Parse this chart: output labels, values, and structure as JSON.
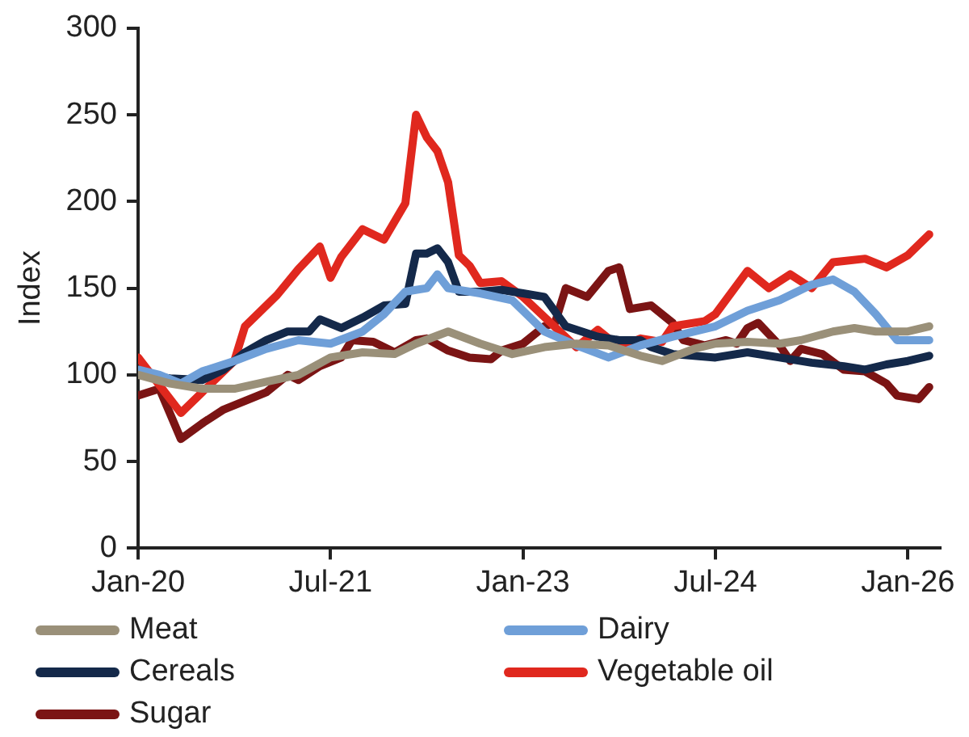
{
  "chart_data": {
    "type": "line",
    "ylabel": "Index",
    "legend": "bottom",
    "line_style": "solid",
    "marker": "none",
    "xlim": [
      "2020-01",
      "2026-04"
    ],
    "xticks": [
      {
        "value": "2020-01",
        "label": "Jan-20"
      },
      {
        "value": "2021-07",
        "label": "Jul-21"
      },
      {
        "value": "2023-01",
        "label": "Jan-23"
      },
      {
        "value": "2024-07",
        "label": "Jul-24"
      },
      {
        "value": "2026-01",
        "label": "Jan-26"
      }
    ],
    "ylim": [
      0,
      300
    ],
    "yticks": [
      0,
      50,
      100,
      150,
      200,
      250,
      300
    ],
    "series": [
      {
        "name": "Meat",
        "color": "#9a9079",
        "x": [
          "2020-01",
          "2020-04",
          "2020-07",
          "2020-10",
          "2021-01",
          "2021-04",
          "2021-07",
          "2021-10",
          "2022-01",
          "2022-03",
          "2022-06",
          "2022-09",
          "2022-12",
          "2023-03",
          "2023-06",
          "2023-09",
          "2023-12",
          "2024-02",
          "2024-05",
          "2024-07",
          "2024-10",
          "2025-01",
          "2025-03",
          "2025-06",
          "2025-08",
          "2025-10",
          "2026-01",
          "2026-03"
        ],
        "values": [
          100,
          95,
          92,
          92,
          96,
          100,
          110,
          113,
          112,
          118,
          125,
          118,
          112,
          116,
          118,
          117,
          111,
          108,
          115,
          118,
          119,
          118,
          120,
          125,
          127,
          125,
          125,
          128
        ]
      },
      {
        "name": "Dairy",
        "color": "#6f9fd8",
        "x": [
          "2020-01",
          "2020-03",
          "2020-05",
          "2020-07",
          "2020-10",
          "2021-01",
          "2021-04",
          "2021-07",
          "2021-10",
          "2021-12",
          "2022-02",
          "2022-04",
          "2022-05",
          "2022-06",
          "2022-09",
          "2022-12",
          "2023-03",
          "2023-06",
          "2023-09",
          "2023-12",
          "2024-03",
          "2024-07",
          "2024-10",
          "2025-01",
          "2025-04",
          "2025-06",
          "2025-08",
          "2025-10",
          "2025-12",
          "2026-03"
        ],
        "values": [
          103,
          100,
          95,
          102,
          108,
          115,
          120,
          118,
          125,
          135,
          148,
          150,
          158,
          150,
          147,
          143,
          125,
          117,
          110,
          117,
          122,
          128,
          137,
          143,
          152,
          155,
          148,
          135,
          120,
          120
        ]
      },
      {
        "name": "Cereals",
        "color": "#14294a",
        "x": [
          "2020-01",
          "2020-04",
          "2020-07",
          "2020-09",
          "2020-11",
          "2021-01",
          "2021-03",
          "2021-05",
          "2021-06",
          "2021-08",
          "2021-10",
          "2021-12",
          "2022-02",
          "2022-03",
          "2022-04",
          "2022-05",
          "2022-06",
          "2022-07",
          "2022-09",
          "2022-11",
          "2023-01",
          "2023-03",
          "2023-05",
          "2023-08",
          "2023-10",
          "2023-12",
          "2024-01",
          "2024-03",
          "2024-07",
          "2024-10",
          "2025-01",
          "2025-04",
          "2025-07",
          "2025-09",
          "2025-11",
          "2026-01",
          "2026-03"
        ],
        "values": [
          100,
          98,
          97,
          103,
          113,
          120,
          125,
          125,
          132,
          127,
          133,
          140,
          141,
          170,
          170,
          173,
          165,
          148,
          148,
          149,
          147,
          145,
          128,
          122,
          120,
          120,
          116,
          112,
          110,
          113,
          110,
          107,
          105,
          103,
          106,
          108,
          111
        ]
      },
      {
        "name": "Vegetable oil",
        "color": "#e0281e",
        "x": [
          "2020-01",
          "2020-05",
          "2020-10",
          "2020-11",
          "2021-02",
          "2021-04",
          "2021-06",
          "2021-07",
          "2021-08",
          "2021-10",
          "2021-12",
          "2022-02",
          "2022-03",
          "2022-04",
          "2022-05",
          "2022-06",
          "2022-07",
          "2022-08",
          "2022-09",
          "2022-11",
          "2023-01",
          "2023-06",
          "2023-08",
          "2023-10",
          "2023-12",
          "2024-02",
          "2024-03",
          "2024-06",
          "2024-07",
          "2024-10",
          "2024-12",
          "2025-02",
          "2025-04",
          "2025-06",
          "2025-09",
          "2025-11",
          "2026-01",
          "2026-03"
        ],
        "values": [
          110,
          78,
          108,
          128,
          146,
          161,
          174,
          156,
          168,
          184,
          178,
          199,
          250,
          237,
          229,
          211,
          169,
          163,
          153,
          154,
          145,
          116,
          126,
          116,
          121,
          119,
          128,
          131,
          135,
          160,
          150,
          158,
          150,
          165,
          167,
          162,
          169,
          181
        ]
      },
      {
        "name": "Sugar",
        "color": "#7b1414",
        "x": [
          "2020-01",
          "2020-03",
          "2020-05",
          "2020-07",
          "2020-09",
          "2020-11",
          "2021-01",
          "2021-03",
          "2021-04",
          "2021-06",
          "2021-08",
          "2021-09",
          "2021-11",
          "2022-01",
          "2022-03",
          "2022-04",
          "2022-06",
          "2022-08",
          "2022-10",
          "2022-11",
          "2023-01",
          "2023-03",
          "2023-04",
          "2023-05",
          "2023-07",
          "2023-09",
          "2023-10",
          "2023-11",
          "2024-01",
          "2024-03",
          "2024-04",
          "2024-06",
          "2024-08",
          "2024-09",
          "2024-10",
          "2024-11",
          "2025-01",
          "2025-02",
          "2025-03",
          "2025-05",
          "2025-07",
          "2025-09",
          "2025-11",
          "2025-12",
          "2026-02",
          "2026-03"
        ],
        "values": [
          88,
          92,
          63,
          72,
          80,
          85,
          90,
          100,
          97,
          105,
          110,
          120,
          119,
          113,
          120,
          121,
          114,
          110,
          109,
          114,
          118,
          128,
          130,
          150,
          145,
          160,
          162,
          138,
          140,
          130,
          120,
          117,
          120,
          118,
          127,
          130,
          117,
          108,
          115,
          112,
          103,
          102,
          95,
          88,
          86,
          93
        ]
      }
    ]
  }
}
